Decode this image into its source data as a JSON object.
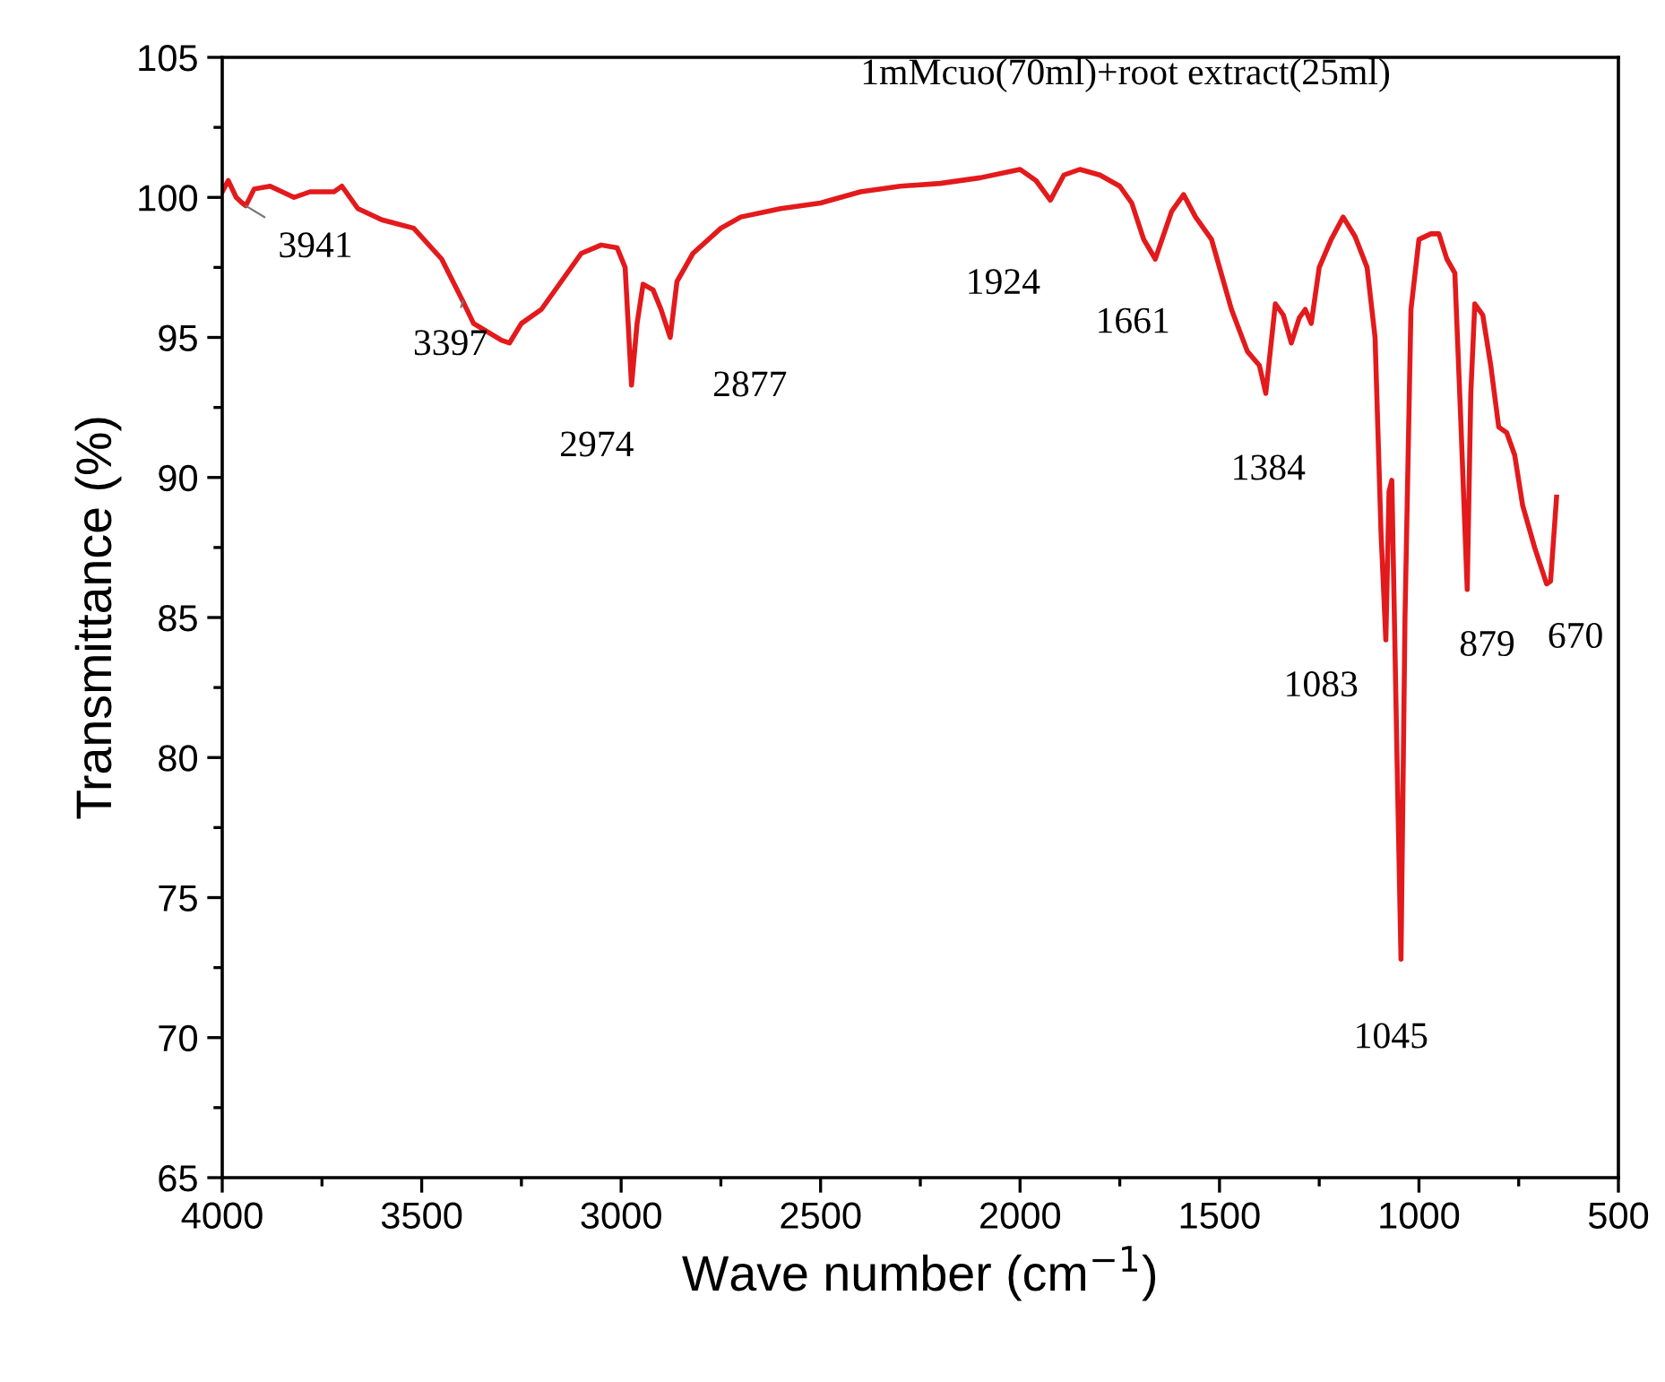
{
  "chart_data": {
    "type": "line",
    "xlabel": "Wave number (cm$^{−1}$)",
    "ylabel": "Transmittance (%)",
    "x": [
      4000,
      3985,
      3965,
      3950,
      3941,
      3920,
      3880,
      3820,
      3780,
      3720,
      3700,
      3660,
      3600,
      3520,
      3450,
      3397,
      3370,
      3300,
      3280,
      3250,
      3200,
      3150,
      3100,
      3050,
      3010,
      2990,
      2974,
      2960,
      2945,
      2920,
      2900,
      2877,
      2860,
      2820,
      2750,
      2700,
      2600,
      2500,
      2400,
      2300,
      2200,
      2100,
      2000,
      1960,
      1924,
      1890,
      1850,
      1800,
      1750,
      1720,
      1690,
      1661,
      1620,
      1590,
      1560,
      1520,
      1470,
      1430,
      1400,
      1384,
      1360,
      1340,
      1320,
      1300,
      1285,
      1270,
      1250,
      1220,
      1190,
      1160,
      1130,
      1110,
      1095,
      1083,
      1075,
      1068,
      1055,
      1045,
      1035,
      1020,
      1000,
      970,
      950,
      930,
      910,
      895,
      879,
      870,
      860,
      840,
      820,
      800,
      780,
      760,
      740,
      710,
      680,
      670,
      655
    ],
    "series": [
      {
        "color": "#e31a1c",
        "values": [
          100.2,
          100.6,
          100.0,
          99.8,
          99.7,
          100.3,
          100.4,
          100.0,
          100.2,
          100.2,
          100.4,
          99.6,
          99.2,
          98.9,
          97.8,
          96.3,
          95.5,
          94.9,
          94.8,
          95.5,
          96.0,
          97.0,
          98.0,
          98.3,
          98.2,
          97.5,
          93.3,
          95.5,
          96.9,
          96.7,
          96.0,
          95.0,
          97.0,
          98.0,
          98.9,
          99.3,
          99.6,
          99.8,
          100.2,
          100.4,
          100.5,
          100.7,
          101.0,
          100.6,
          99.9,
          100.8,
          101.0,
          100.8,
          100.4,
          99.8,
          98.5,
          97.8,
          99.5,
          100.1,
          99.3,
          98.5,
          96.0,
          94.5,
          94.0,
          93.0,
          96.2,
          95.8,
          94.8,
          95.7,
          96.0,
          95.5,
          97.5,
          98.5,
          99.3,
          98.6,
          97.5,
          95.0,
          88.0,
          84.2,
          89.5,
          89.9,
          80.0,
          72.8,
          85.0,
          96.0,
          98.5,
          98.7,
          98.7,
          97.8,
          97.3,
          92.0,
          86.0,
          93.0,
          96.2,
          95.8,
          94.0,
          91.8,
          91.6,
          90.8,
          89.0,
          87.5,
          86.2,
          86.3,
          89.3
        ]
      }
    ],
    "xlim": [
      4000,
      500
    ],
    "xticks": [
      4000,
      3500,
      3000,
      2500,
      2000,
      1500,
      1000,
      500
    ],
    "ylim": [
      65,
      105
    ],
    "yticks": [
      65,
      70,
      75,
      80,
      85,
      90,
      95,
      100,
      105
    ],
    "grid": false,
    "legend": false,
    "marker": "none",
    "line_style": "solid",
    "annotations": [
      "1mMcuo(70ml)+root extract(25ml)",
      {
        "text": "3941",
        "x": 3941,
        "y": 99.7
      },
      {
        "text": "3397",
        "x": 3397,
        "y": 96.3
      },
      {
        "text": "2974",
        "x": 2974,
        "y": 93.3
      },
      {
        "text": "2877",
        "x": 2877,
        "y": 95.0
      },
      {
        "text": "1924",
        "x": 1924,
        "y": 99.9
      },
      {
        "text": "1661",
        "x": 1661,
        "y": 97.8
      },
      {
        "text": "1384",
        "x": 1384,
        "y": 93.0
      },
      {
        "text": "1083",
        "x": 1083,
        "y": 84.2
      },
      {
        "text": "1045",
        "x": 1045,
        "y": 72.8
      },
      {
        "text": "879",
        "x": 879,
        "y": 86.0
      },
      {
        "text": "670",
        "x": 670,
        "y": 86.2
      }
    ]
  }
}
